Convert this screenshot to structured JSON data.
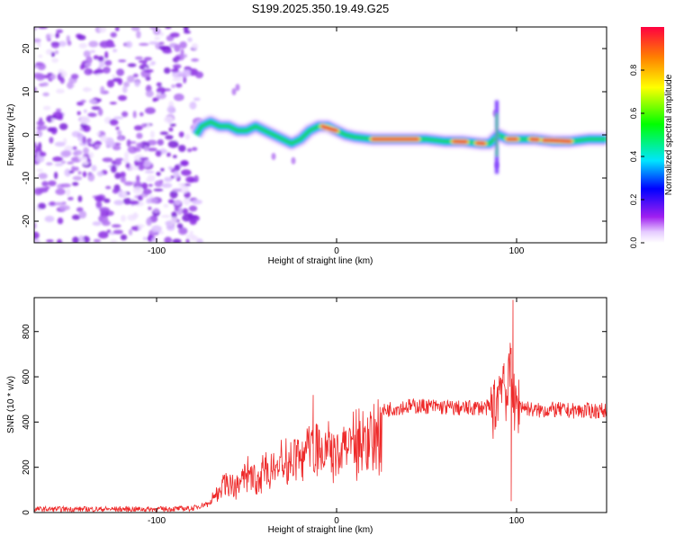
{
  "title": "S199.2025.350.19.49.G25",
  "colors": {
    "snr_line": "#ee2a2a",
    "axis": "#000000",
    "ridge_core": "#e8003a",
    "ridge_mid": "#22cc55",
    "ridge_edge": "#2244ff",
    "noise": "#8a2be2"
  },
  "chart_data": [
    {
      "type": "heatmap",
      "title": "S199.2025.350.19.49.G25",
      "xlabel": "Height of straight line (km)",
      "ylabel": "Frequency (Hz)",
      "xlim": [
        -168,
        150
      ],
      "ylim": [
        -25,
        25
      ],
      "xticks": [
        -100,
        0,
        100
      ],
      "yticks": [
        -20,
        -10,
        0,
        10,
        20
      ],
      "noise_region_x": [
        -168,
        -76
      ],
      "ridge": {
        "x": [
          -78,
          -75,
          -70,
          -65,
          -60,
          -55,
          -50,
          -45,
          -40,
          -35,
          -30,
          -25,
          -20,
          -15,
          -10,
          -5,
          0,
          5,
          10,
          20,
          30,
          40,
          50,
          60,
          70,
          80,
          85,
          90,
          95,
          100,
          110,
          120,
          130,
          140,
          150
        ],
        "y": [
          0,
          2,
          3,
          2,
          2,
          1,
          1,
          2,
          1,
          0,
          -1,
          -2,
          -1,
          1,
          2,
          2,
          1,
          0,
          -0.5,
          -1,
          -1,
          -1,
          -1,
          -1.5,
          -1.5,
          -2,
          -2,
          0,
          -1,
          -1,
          -1,
          -1.5,
          -1.5,
          -1,
          -1
        ]
      },
      "hot_segments": [
        [
          -8,
          0
        ],
        [
          20,
          45
        ],
        [
          65,
          72
        ],
        [
          78,
          82
        ],
        [
          95,
          100
        ],
        [
          108,
          112
        ],
        [
          115,
          130
        ]
      ],
      "colorbar": {
        "label": "Normalized spectral amplitude",
        "range": [
          0,
          1
        ],
        "ticks": [
          "0.0",
          "0.2",
          "0.4",
          "0.6",
          "0.8"
        ]
      }
    },
    {
      "type": "line",
      "xlabel": "Height of straight line (km)",
      "ylabel": "SNR (10 * v/v)",
      "xlim": [
        -168,
        150
      ],
      "ylim": [
        0,
        950
      ],
      "xticks": [
        -100,
        0,
        100
      ],
      "yticks": [
        0,
        200,
        400,
        600,
        800
      ],
      "series": [
        {
          "name": "SNR",
          "x": [
            -168,
            -140,
            -120,
            -100,
            -80,
            -72,
            -65,
            -60,
            -55,
            -50,
            -45,
            -40,
            -35,
            -30,
            -25,
            -20,
            -14,
            -10,
            -5,
            0,
            5,
            10,
            15,
            20,
            30,
            40,
            50,
            60,
            70,
            80,
            88,
            92,
            95,
            97,
            99,
            100,
            110,
            120,
            130,
            140,
            150
          ],
          "y": [
            15,
            15,
            15,
            15,
            18,
            40,
            130,
            170,
            150,
            220,
            190,
            250,
            240,
            280,
            300,
            320,
            380,
            340,
            340,
            310,
            360,
            390,
            410,
            430,
            460,
            470,
            470,
            465,
            460,
            465,
            460,
            620,
            500,
            700,
            420,
            480,
            450,
            455,
            450,
            450,
            450
          ]
        }
      ],
      "spikes": [
        {
          "x": -13,
          "y": 520
        },
        {
          "x": 93,
          "y": 660
        },
        {
          "x": 98,
          "y": 940
        },
        {
          "x": 97,
          "y": 50
        }
      ]
    }
  ]
}
